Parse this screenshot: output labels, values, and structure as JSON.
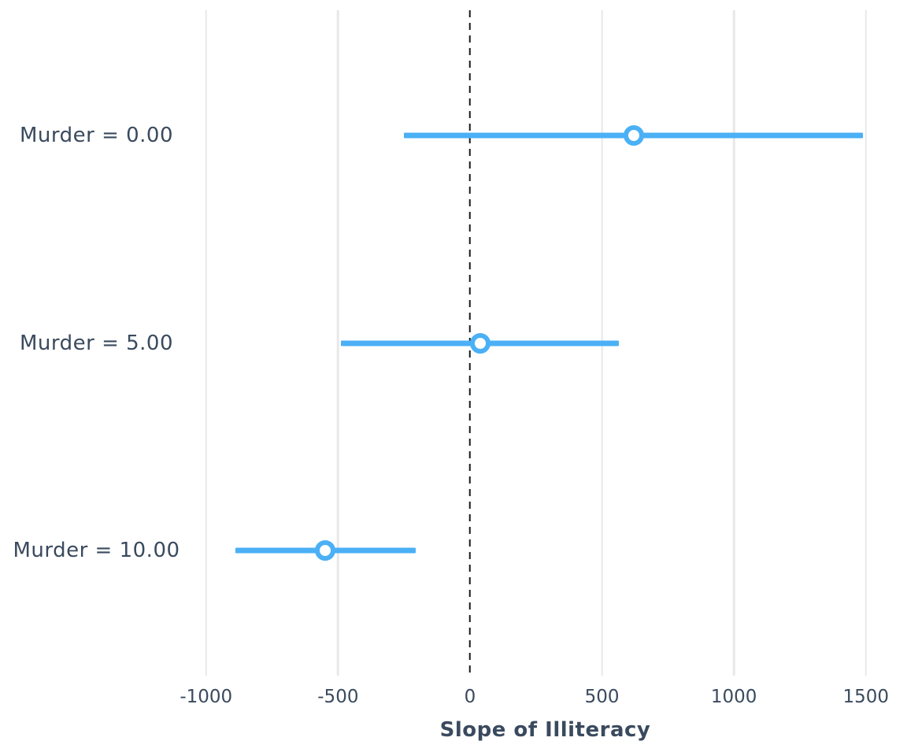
{
  "chart_data": {
    "type": "scatter",
    "subtype": "point-range-interaction-plot",
    "title": "",
    "xlabel": "Slope of Illiteracy",
    "ylabel": "",
    "x_ticks": [
      -1000,
      -500,
      0,
      500,
      1000,
      1500
    ],
    "xlim": [
      -1050,
      1620
    ],
    "grid": "vertical-gridlines-only",
    "legend": "none",
    "zero_reference_line": {
      "x": 0,
      "style": "dashed",
      "color": "#1a1a1a"
    },
    "categories": [
      "Murder = 0.00",
      "Murder = 5.00",
      "Murder = 10.00"
    ],
    "rows": [
      {
        "label": "Murder = 0.00",
        "estimate": 620,
        "ci_low": -250,
        "ci_high": 1490
      },
      {
        "label": "Murder = 5.00",
        "estimate": 40,
        "ci_low": -490,
        "ci_high": 565
      },
      {
        "label": "Murder = 10.00",
        "estimate": -550,
        "ci_low": -890,
        "ci_high": -205
      }
    ],
    "colors": {
      "interval": "#4bb0f5",
      "marker_ring": "#4bb0f5",
      "marker_fill": "#ffffff",
      "text": "#3a4a5e",
      "gridline": "#e8e8e8",
      "zero_line": "#1a1a1a",
      "background": "#ffffff"
    }
  }
}
